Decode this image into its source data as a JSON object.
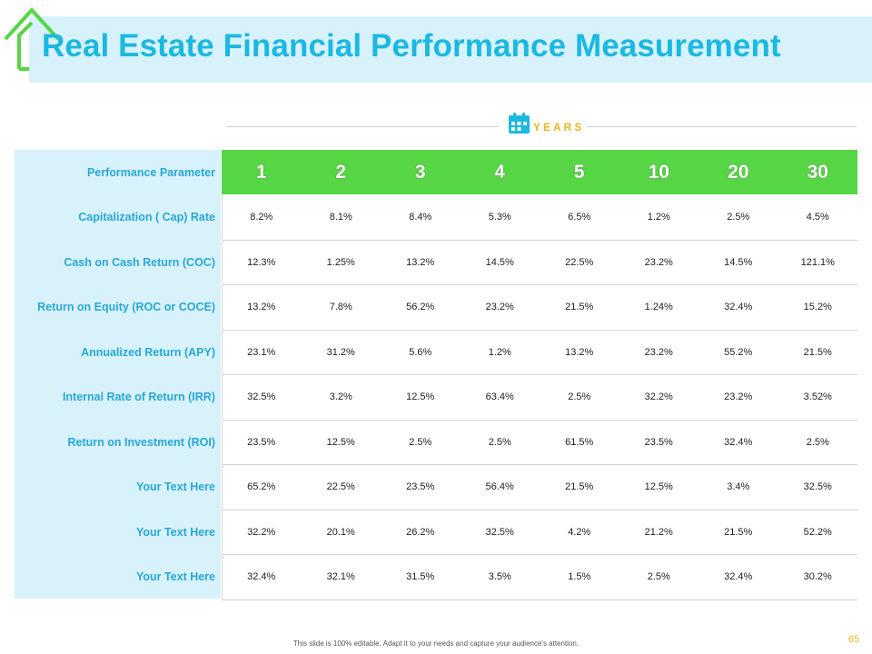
{
  "title": "Real Estate Financial Performance Measurement",
  "years_label": "YEARS",
  "icons": {
    "house": "house-outline-icon",
    "calendar": "calendar-icon"
  },
  "colors": {
    "title": "#1bb8e1",
    "title_bar_bg": "#d7f2fb",
    "header_green": "#56d545",
    "label_text": "#27a7d6",
    "years_text": "#e5b820"
  },
  "table": {
    "header_label": "Performance Parameter",
    "years": [
      "1",
      "2",
      "3",
      "4",
      "5",
      "10",
      "20",
      "30"
    ],
    "rows": [
      {
        "label": "Capitalization ( Cap) Rate",
        "values": [
          "8.2%",
          "8.1%",
          "8.4%",
          "5.3%",
          "6.5%",
          "1.2%",
          "2.5%",
          "4.5%"
        ]
      },
      {
        "label": "Cash on Cash Return (COC)",
        "values": [
          "12.3%",
          "1.25%",
          "13.2%",
          "14.5%",
          "22.5%",
          "23.2%",
          "14.5%",
          "121.1%"
        ]
      },
      {
        "label": "Return on Equity (ROC  or COCE)",
        "values": [
          "13.2%",
          "7.8%",
          "56.2%",
          "23.2%",
          "21.5%",
          "1.24%",
          "32.4%",
          "15.2%"
        ]
      },
      {
        "label": "Annualized Return (APY)",
        "values": [
          "23.1%",
          "31.2%",
          "5.6%",
          "1.2%",
          "13.2%",
          "23.2%",
          "55.2%",
          "21.5%"
        ]
      },
      {
        "label": "Internal Rate of Return (IRR)",
        "values": [
          "32.5%",
          "3.2%",
          "12.5%",
          "63.4%",
          "2.5%",
          "32.2%",
          "23.2%",
          "3.52%"
        ]
      },
      {
        "label": "Return on Investment (ROI)",
        "values": [
          "23.5%",
          "12.5%",
          "2.5%",
          "2.5%",
          "61.5%",
          "23.5%",
          "32.4%",
          "2.5%"
        ]
      },
      {
        "label": "Your Text Here",
        "values": [
          "65.2%",
          "22.5%",
          "23.5%",
          "56.4%",
          "21.5%",
          "12.5%",
          "3.4%",
          "32.5%"
        ]
      },
      {
        "label": "Your Text Here",
        "values": [
          "32.2%",
          "20.1%",
          "26.2%",
          "32.5%",
          "4.2%",
          "21.2%",
          "21.5%",
          "52.2%"
        ]
      },
      {
        "label": "Your Text Here",
        "values": [
          "32.4%",
          "32.1%",
          "31.5%",
          "3.5%",
          "1.5%",
          "2.5%",
          "32.4%",
          "30.2%"
        ]
      }
    ]
  },
  "footer": "This slide is 100% editable. Adapt it to your needs and capture your audience's attention.",
  "page_number": "65"
}
